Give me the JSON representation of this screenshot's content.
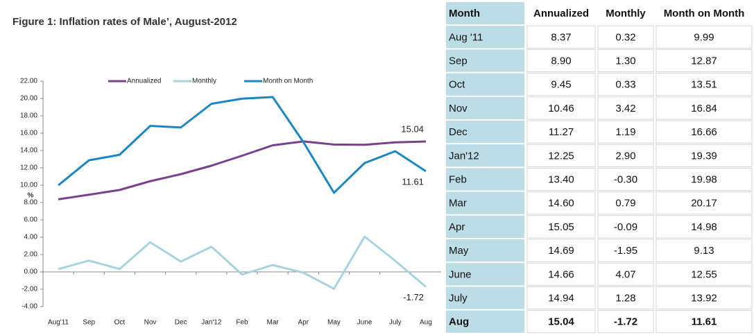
{
  "chart_data": {
    "type": "line",
    "title": "Figure 1: Inflation rates of Male’, August-2012",
    "y_label": "%",
    "categories": [
      "Aug'11",
      "Sep",
      "Oct",
      "Nov",
      "Dec",
      "Jan'12",
      "Feb",
      "Mar",
      "Apr",
      "May",
      "June",
      "July",
      "Aug"
    ],
    "series": [
      {
        "name": "Annualized",
        "color": "#7b3f8f",
        "values": [
          8.37,
          8.9,
          9.45,
          10.46,
          11.27,
          12.25,
          13.4,
          14.6,
          15.05,
          14.69,
          14.66,
          14.94,
          15.04
        ]
      },
      {
        "name": "Monthly",
        "color": "#a6d3dd",
        "values": [
          0.32,
          1.3,
          0.33,
          3.42,
          1.19,
          2.9,
          -0.3,
          0.79,
          -0.09,
          -1.95,
          4.07,
          1.28,
          -1.72
        ]
      },
      {
        "name": "Month on Month",
        "color": "#1a87c5",
        "values": [
          9.99,
          12.87,
          13.51,
          16.84,
          16.66,
          19.39,
          19.98,
          20.17,
          14.98,
          9.13,
          12.55,
          13.92,
          11.61
        ]
      }
    ],
    "ylim": [
      -4,
      22
    ],
    "yticks": [
      {
        "value": -4,
        "label": "-4.00"
      },
      {
        "value": -2,
        "label": "-2.00"
      },
      {
        "value": 0,
        "label": "0.00"
      },
      {
        "value": 2,
        "label": "2.00"
      },
      {
        "value": 4,
        "label": "4.00"
      },
      {
        "value": 6,
        "label": "6.00"
      },
      {
        "value": 8,
        "label": "8.00"
      },
      {
        "value": 10,
        "label": "10.00"
      },
      {
        "value": 12,
        "label": "12.00"
      },
      {
        "value": 14,
        "label": "14.00"
      },
      {
        "value": 16,
        "label": "16.00"
      },
      {
        "value": 18,
        "label": "18.00"
      },
      {
        "value": 20,
        "label": "20.00"
      },
      {
        "value": 22,
        "label": "22.00"
      }
    ],
    "label_last_point": true,
    "legend": "top"
  },
  "table": {
    "header": [
      "Month",
      "Annualized",
      "Monthly",
      "Month on Month"
    ],
    "rows": [
      [
        "Aug '11",
        "8.37",
        "0.32",
        "9.99"
      ],
      [
        "Sep",
        "8.90",
        "1.30",
        "12.87"
      ],
      [
        "Oct",
        "9.45",
        "0.33",
        "13.51"
      ],
      [
        "Nov",
        "10.46",
        "3.42",
        "16.84"
      ],
      [
        "Dec",
        "11.27",
        "1.19",
        "16.66"
      ],
      [
        "Jan'12",
        "12.25",
        "2.90",
        "19.39"
      ],
      [
        "Feb",
        "13.40",
        "-0.30",
        "19.98"
      ],
      [
        "Mar",
        "14.60",
        "0.79",
        "20.17"
      ],
      [
        "Apr",
        "15.05",
        "-0.09",
        "14.98"
      ],
      [
        "May",
        "14.69",
        "-1.95",
        "9.13"
      ],
      [
        "June",
        "14.66",
        "4.07",
        "12.55"
      ],
      [
        "July",
        "14.94",
        "1.28",
        "13.92"
      ],
      [
        "Aug",
        "15.04",
        "-1.72",
        "11.61"
      ]
    ]
  }
}
